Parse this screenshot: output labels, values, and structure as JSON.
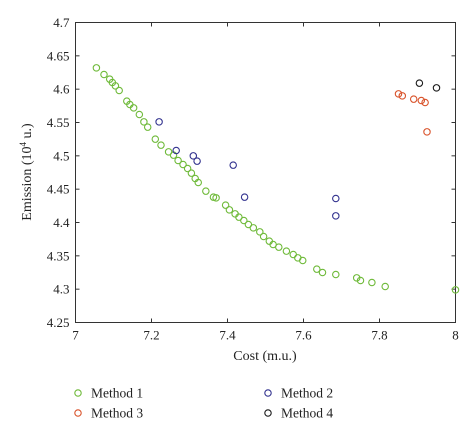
{
  "chart_data": {
    "type": "scatter",
    "xlabel": "Cost (m.u.)",
    "ylabel": "Emission (10",
    "ylabel_sup": "4",
    "ylabel_tail": " u.)",
    "xlim": [
      7,
      8
    ],
    "ylim": [
      4.25,
      4.7
    ],
    "xticks": [
      "7",
      "7.2",
      "7.4",
      "7.6",
      "7.8",
      "8"
    ],
    "yticks": [
      "4.25",
      "4.3",
      "4.35",
      "4.4",
      "4.45",
      "4.5",
      "4.55",
      "4.6",
      "4.65",
      "4.7"
    ],
    "grid": false,
    "legend_position": "bottom",
    "series": [
      {
        "name": "Method 1",
        "color": "#6fba3a",
        "points": [
          [
            7.055,
            4.632
          ],
          [
            7.075,
            4.622
          ],
          [
            7.09,
            4.615
          ],
          [
            7.097,
            4.61
          ],
          [
            7.105,
            4.605
          ],
          [
            7.115,
            4.598
          ],
          [
            7.135,
            4.582
          ],
          [
            7.143,
            4.577
          ],
          [
            7.153,
            4.572
          ],
          [
            7.168,
            4.562
          ],
          [
            7.18,
            4.551
          ],
          [
            7.19,
            4.543
          ],
          [
            7.21,
            4.525
          ],
          [
            7.225,
            4.516
          ],
          [
            7.245,
            4.506
          ],
          [
            7.258,
            4.501
          ],
          [
            7.27,
            4.493
          ],
          [
            7.283,
            4.487
          ],
          [
            7.295,
            4.481
          ],
          [
            7.305,
            4.474
          ],
          [
            7.315,
            4.466
          ],
          [
            7.323,
            4.46
          ],
          [
            7.343,
            4.447
          ],
          [
            7.363,
            4.438
          ],
          [
            7.37,
            4.437
          ],
          [
            7.395,
            4.426
          ],
          [
            7.405,
            4.419
          ],
          [
            7.42,
            4.413
          ],
          [
            7.43,
            4.408
          ],
          [
            7.443,
            4.403
          ],
          [
            7.455,
            4.397
          ],
          [
            7.468,
            4.392
          ],
          [
            7.485,
            4.386
          ],
          [
            7.495,
            4.379
          ],
          [
            7.51,
            4.372
          ],
          [
            7.52,
            4.367
          ],
          [
            7.535,
            4.363
          ],
          [
            7.555,
            4.357
          ],
          [
            7.573,
            4.352
          ],
          [
            7.585,
            4.347
          ],
          [
            7.598,
            4.343
          ],
          [
            7.635,
            4.33
          ],
          [
            7.65,
            4.325
          ],
          [
            7.685,
            4.322
          ],
          [
            7.74,
            4.317
          ],
          [
            7.75,
            4.313
          ],
          [
            7.78,
            4.31
          ],
          [
            7.815,
            4.304
          ],
          [
            8.0,
            4.299
          ]
        ]
      },
      {
        "name": "Method 2",
        "color": "#33338f",
        "points": [
          [
            7.22,
            4.551
          ],
          [
            7.265,
            4.508
          ],
          [
            7.31,
            4.5
          ],
          [
            7.32,
            4.492
          ],
          [
            7.415,
            4.486
          ],
          [
            7.445,
            4.438
          ],
          [
            7.685,
            4.436
          ],
          [
            7.685,
            4.41
          ]
        ]
      },
      {
        "name": "Method 3",
        "color": "#d9532b",
        "points": [
          [
            7.85,
            4.593
          ],
          [
            7.86,
            4.59
          ],
          [
            7.89,
            4.585
          ],
          [
            7.91,
            4.583
          ],
          [
            7.92,
            4.58
          ],
          [
            7.925,
            4.536
          ]
        ]
      },
      {
        "name": "Method 4",
        "color": "#1a1a1a",
        "points": [
          [
            7.905,
            4.609
          ],
          [
            7.95,
            4.602
          ]
        ]
      }
    ]
  }
}
